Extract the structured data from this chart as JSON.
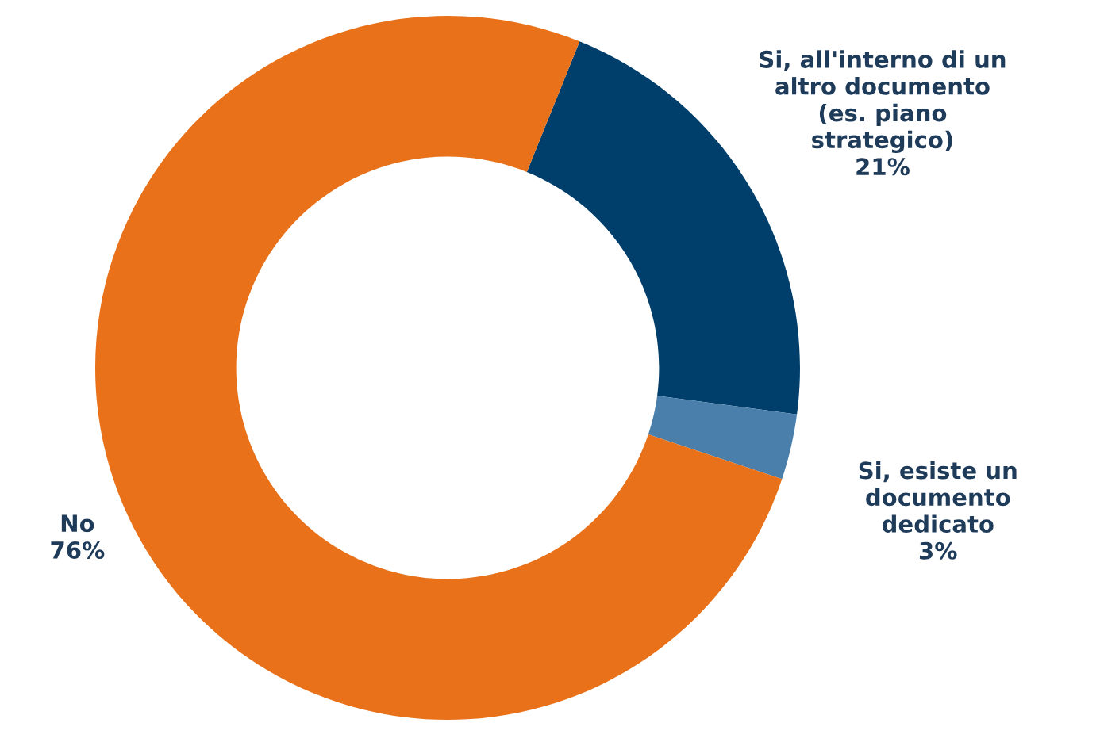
{
  "chart_data": {
    "type": "donut",
    "categories": [
      "Si, all'interno di un\naltro documento\n(es. piano\nstrategico)",
      "Si, esiste un\ndocumento\ndedicato",
      "No"
    ],
    "values": [
      21,
      3,
      76
    ],
    "value_labels": [
      "21%",
      "3%",
      "76%"
    ],
    "colors": [
      "#003f6b",
      "#4a7fab",
      "#e8711a"
    ],
    "legend": false
  }
}
